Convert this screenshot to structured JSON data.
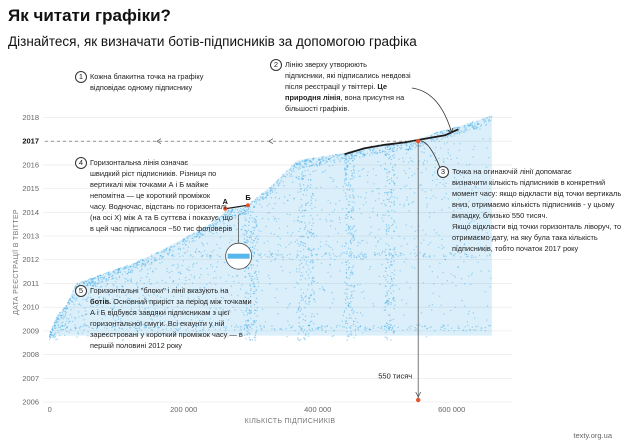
{
  "title": "Як читати графіки?",
  "subtitle": "Дізнайтеся, як визначати ботів-підписників за допомогою графіка",
  "source": "texty.org.ua",
  "colors": {
    "dots": "#3aa9e6",
    "curve": "#1a1a1a",
    "marker": "#e8532a",
    "guide": "#555555"
  },
  "chart_data": {
    "type": "scatter",
    "xlabel": "КІЛЬКІСТЬ ПІДПИСНИКІВ",
    "ylabel": "ДАТА РЕЄСТРАЦІЇ В ТВІТТЕР",
    "xlim": [
      -10000,
      690000
    ],
    "ylim": [
      2006,
      2018.4
    ],
    "x_ticks": [
      "0",
      "200 000",
      "400 000",
      "600 000"
    ],
    "x_tick_values": [
      0,
      200000,
      400000,
      600000
    ],
    "y_ticks": [
      "2006",
      "2007",
      "2008",
      "2009",
      "2010",
      "2011",
      "2012",
      "2013",
      "2014",
      "2015",
      "2016",
      "2017",
      "2018"
    ],
    "y_tick_values": [
      2006,
      2007,
      2008,
      2009,
      2010,
      2011,
      2012,
      2013,
      2014,
      2015,
      2016,
      2017,
      2018
    ],
    "highlighted_tick": "2017",
    "envelope": [
      {
        "x": 0,
        "y": 2008.9
      },
      {
        "x": 10000,
        "y": 2009.6
      },
      {
        "x": 25000,
        "y": 2010.1
      },
      {
        "x": 40000,
        "y": 2011.0
      },
      {
        "x": 80000,
        "y": 2011.4
      },
      {
        "x": 120000,
        "y": 2011.8
      },
      {
        "x": 160000,
        "y": 2012.3
      },
      {
        "x": 200000,
        "y": 2012.9
      },
      {
        "x": 240000,
        "y": 2013.5
      },
      {
        "x": 265000,
        "y": 2014.1
      },
      {
        "x": 295000,
        "y": 2014.3
      },
      {
        "x": 330000,
        "y": 2015.1
      },
      {
        "x": 370000,
        "y": 2016.2
      },
      {
        "x": 440000,
        "y": 2016.5
      },
      {
        "x": 480000,
        "y": 2016.8
      },
      {
        "x": 540000,
        "y": 2017.0
      },
      {
        "x": 580000,
        "y": 2017.4
      },
      {
        "x": 620000,
        "y": 2017.7
      },
      {
        "x": 660000,
        "y": 2018.1
      }
    ],
    "natural_line": [
      {
        "x": 440000,
        "y": 2016.45
      },
      {
        "x": 470000,
        "y": 2016.7
      },
      {
        "x": 500000,
        "y": 2016.85
      },
      {
        "x": 530000,
        "y": 2016.95
      },
      {
        "x": 560000,
        "y": 2017.1
      },
      {
        "x": 590000,
        "y": 2017.25
      },
      {
        "x": 610000,
        "y": 2017.5
      }
    ],
    "point_A": {
      "label": "А",
      "x": 262000,
      "y": 2014.15
    },
    "point_B": {
      "label": "Б",
      "x": 296000,
      "y": 2014.3
    },
    "marker_550k": {
      "label": "550 тисяч",
      "x": 550000,
      "y": 2017.0
    }
  },
  "annotations": [
    {
      "num": "1",
      "lines": [
        [
          "Кожна блакитна точка на графіку"
        ],
        [
          "відповідає одному підписнику"
        ]
      ]
    },
    {
      "num": "2",
      "lines": [
        [
          "Лінію зверху утворюють"
        ],
        [
          "підписники, які підписались невдовзі"
        ],
        [
          "після реєстрації у твіттері. "
        ],
        [
          "",
          "Це"
        ],
        [
          "",
          "природня лінія",
          ", вона присутня на"
        ],
        [
          "більшості графіків."
        ]
      ]
    },
    {
      "num": "3",
      "lines": [
        [
          "Точка на огинаючій лінії допомагає"
        ],
        [
          "визначити кількість підписників в конкретний"
        ],
        [
          "момент часу: якщо відкласти від точки вертикаль"
        ],
        [
          "вниз, отримаємо кількість підписників - у цьому"
        ],
        [
          "випадку, близько 550 тисяч."
        ],
        [
          "Якщо відкласти від точки горизонталь ліворуч, то"
        ],
        [
          "отримаємо дату, на яку була така кількість"
        ],
        [
          "підписників, тобто початок 2017 року"
        ]
      ]
    },
    {
      "num": "4",
      "lines": [
        [
          "Горизонтальна лінія означає"
        ],
        [
          "швидкий ріст підписників. Різниця по"
        ],
        [
          "вертикалі між точками А і Б майже"
        ],
        [
          "непомітна — це короткий проміжок"
        ],
        [
          "часу. Водночас, відстань по горизонталі"
        ],
        [
          "(на осі Х) між А та Б суттєва і показує, що"
        ],
        [
          "в цей час підписалося ~50 тис фоловерів"
        ]
      ]
    },
    {
      "num": "5",
      "lines": [
        [
          "Горизонтальні \"блоки\" і лінії вказують на"
        ],
        [
          "",
          "ботів.",
          " Основний приріст за період між точками"
        ],
        [
          "А і Б відбувся завдяки підписникам з цієї"
        ],
        [
          "горизонтальної смуги. Всі екаунти у ній"
        ],
        [
          "зареєстровані у короткий проміжок часу — в"
        ],
        [
          "першій половині 2012 року"
        ]
      ]
    }
  ]
}
